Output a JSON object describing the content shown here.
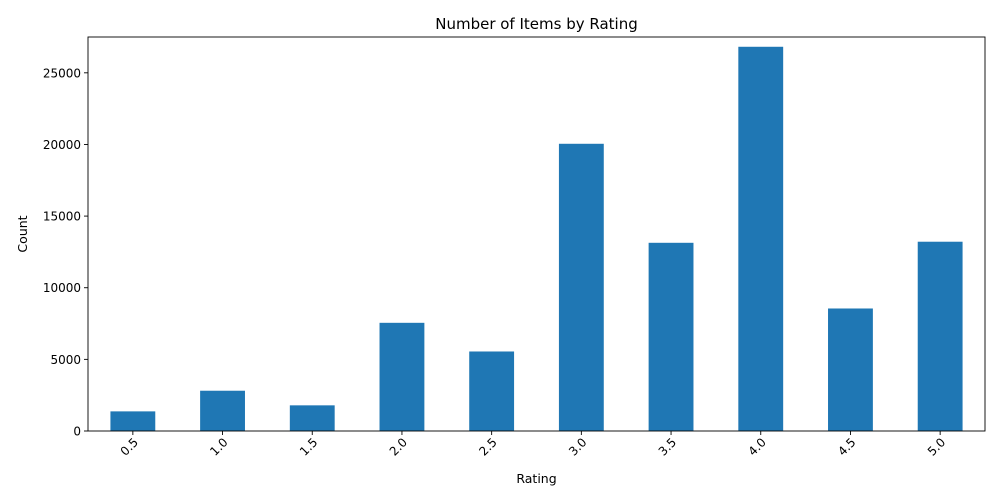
{
  "chart_data": {
    "type": "bar",
    "title": "Number of Items by Rating",
    "xlabel": "Rating",
    "ylabel": "Count",
    "categories": [
      "0.5",
      "1.0",
      "1.5",
      "2.0",
      "2.5",
      "3.0",
      "3.5",
      "4.0",
      "4.5",
      "5.0"
    ],
    "values": [
      1370,
      2811,
      1791,
      7551,
      5550,
      20047,
      13136,
      26818,
      8551,
      13211
    ],
    "ylim": [
      0,
      27500
    ],
    "yticks": [
      0,
      5000,
      10000,
      15000,
      20000,
      25000
    ],
    "ytick_labels": [
      "0",
      "5000",
      "10000",
      "15000",
      "20000",
      "25000"
    ],
    "bar_color": "#1f77b4",
    "grid": false,
    "legend": "none",
    "x_tick_rotation": 45
  }
}
